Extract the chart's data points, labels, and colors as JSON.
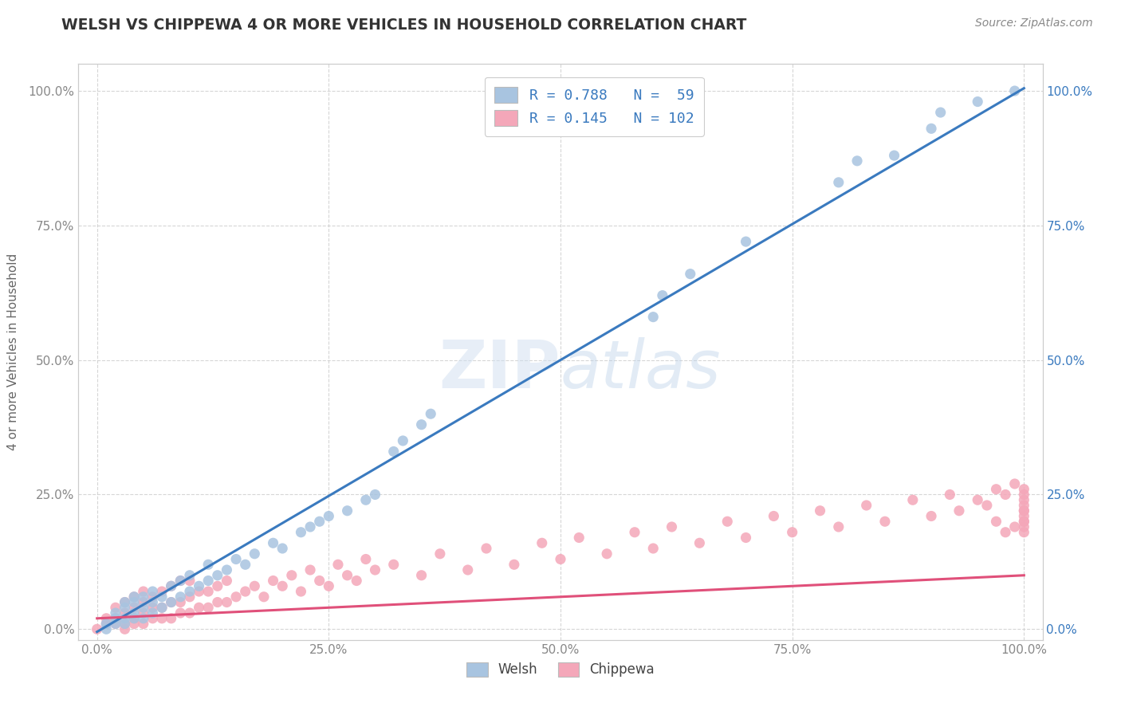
{
  "title": "WELSH VS CHIPPEWA 4 OR MORE VEHICLES IN HOUSEHOLD CORRELATION CHART",
  "source": "Source: ZipAtlas.com",
  "ylabel": "4 or more Vehicles in Household",
  "xlim": [
    -0.02,
    1.02
  ],
  "ylim": [
    -0.02,
    1.05
  ],
  "x_ticks": [
    0.0,
    0.25,
    0.5,
    0.75,
    1.0
  ],
  "x_tick_labels": [
    "0.0%",
    "25.0%",
    "50.0%",
    "75.0%",
    "100.0%"
  ],
  "y_ticks": [
    0.0,
    0.25,
    0.5,
    0.75,
    1.0
  ],
  "y_tick_labels": [
    "0.0%",
    "25.0%",
    "50.0%",
    "75.0%",
    "100.0%"
  ],
  "welsh_color": "#a8c4e0",
  "chippewa_color": "#f4a7b9",
  "welsh_line_color": "#3a7abf",
  "chippewa_line_color": "#e0507a",
  "welsh_R": 0.788,
  "welsh_N": 59,
  "chippewa_R": 0.145,
  "chippewa_N": 102,
  "background_color": "#ffffff",
  "grid_color": "#cccccc",
  "welsh_scatter_x": [
    0.01,
    0.01,
    0.02,
    0.02,
    0.02,
    0.03,
    0.03,
    0.03,
    0.03,
    0.04,
    0.04,
    0.04,
    0.04,
    0.05,
    0.05,
    0.05,
    0.06,
    0.06,
    0.06,
    0.07,
    0.07,
    0.08,
    0.08,
    0.09,
    0.09,
    0.1,
    0.1,
    0.11,
    0.12,
    0.12,
    0.13,
    0.14,
    0.15,
    0.16,
    0.17,
    0.19,
    0.2,
    0.22,
    0.23,
    0.24,
    0.25,
    0.27,
    0.29,
    0.3,
    0.32,
    0.33,
    0.35,
    0.36,
    0.6,
    0.61,
    0.64,
    0.7,
    0.8,
    0.82,
    0.86,
    0.9,
    0.91,
    0.95,
    0.99
  ],
  "welsh_scatter_y": [
    0.0,
    0.01,
    0.01,
    0.02,
    0.03,
    0.01,
    0.02,
    0.04,
    0.05,
    0.02,
    0.03,
    0.05,
    0.06,
    0.02,
    0.04,
    0.06,
    0.03,
    0.05,
    0.07,
    0.04,
    0.06,
    0.05,
    0.08,
    0.06,
    0.09,
    0.07,
    0.1,
    0.08,
    0.09,
    0.12,
    0.1,
    0.11,
    0.13,
    0.12,
    0.14,
    0.16,
    0.15,
    0.18,
    0.19,
    0.2,
    0.21,
    0.22,
    0.24,
    0.25,
    0.33,
    0.35,
    0.38,
    0.4,
    0.58,
    0.62,
    0.66,
    0.72,
    0.83,
    0.87,
    0.88,
    0.93,
    0.96,
    0.98,
    1.0
  ],
  "chippewa_scatter_x": [
    0.0,
    0.01,
    0.01,
    0.02,
    0.02,
    0.02,
    0.03,
    0.03,
    0.03,
    0.03,
    0.04,
    0.04,
    0.04,
    0.04,
    0.05,
    0.05,
    0.05,
    0.05,
    0.06,
    0.06,
    0.06,
    0.07,
    0.07,
    0.07,
    0.08,
    0.08,
    0.08,
    0.09,
    0.09,
    0.09,
    0.1,
    0.1,
    0.1,
    0.11,
    0.11,
    0.12,
    0.12,
    0.13,
    0.13,
    0.14,
    0.14,
    0.15,
    0.16,
    0.17,
    0.18,
    0.19,
    0.2,
    0.21,
    0.22,
    0.23,
    0.24,
    0.25,
    0.26,
    0.27,
    0.28,
    0.29,
    0.3,
    0.32,
    0.35,
    0.37,
    0.4,
    0.42,
    0.45,
    0.48,
    0.5,
    0.52,
    0.55,
    0.58,
    0.6,
    0.62,
    0.65,
    0.68,
    0.7,
    0.73,
    0.75,
    0.78,
    0.8,
    0.83,
    0.85,
    0.88,
    0.9,
    0.92,
    0.93,
    0.95,
    0.96,
    0.97,
    0.97,
    0.98,
    0.98,
    0.99,
    0.99,
    1.0,
    1.0,
    1.0,
    1.0,
    1.0,
    1.0,
    1.0,
    1.0,
    1.0,
    1.0,
    1.0
  ],
  "chippewa_scatter_y": [
    0.0,
    0.01,
    0.02,
    0.01,
    0.02,
    0.04,
    0.0,
    0.01,
    0.03,
    0.05,
    0.01,
    0.02,
    0.04,
    0.06,
    0.01,
    0.03,
    0.05,
    0.07,
    0.02,
    0.04,
    0.06,
    0.02,
    0.04,
    0.07,
    0.02,
    0.05,
    0.08,
    0.03,
    0.05,
    0.09,
    0.03,
    0.06,
    0.09,
    0.04,
    0.07,
    0.04,
    0.07,
    0.05,
    0.08,
    0.05,
    0.09,
    0.06,
    0.07,
    0.08,
    0.06,
    0.09,
    0.08,
    0.1,
    0.07,
    0.11,
    0.09,
    0.08,
    0.12,
    0.1,
    0.09,
    0.13,
    0.11,
    0.12,
    0.1,
    0.14,
    0.11,
    0.15,
    0.12,
    0.16,
    0.13,
    0.17,
    0.14,
    0.18,
    0.15,
    0.19,
    0.16,
    0.2,
    0.17,
    0.21,
    0.18,
    0.22,
    0.19,
    0.23,
    0.2,
    0.24,
    0.21,
    0.25,
    0.22,
    0.24,
    0.23,
    0.26,
    0.2,
    0.25,
    0.18,
    0.27,
    0.19,
    0.26,
    0.22,
    0.24,
    0.2,
    0.23,
    0.18,
    0.25,
    0.21,
    0.19,
    0.22,
    0.2
  ],
  "welsh_line_x0": 0.0,
  "welsh_line_y0": -0.005,
  "welsh_line_x1": 1.0,
  "welsh_line_y1": 1.005,
  "chippewa_line_x0": 0.0,
  "chippewa_line_y0": 0.02,
  "chippewa_line_x1": 1.0,
  "chippewa_line_y1": 0.1
}
